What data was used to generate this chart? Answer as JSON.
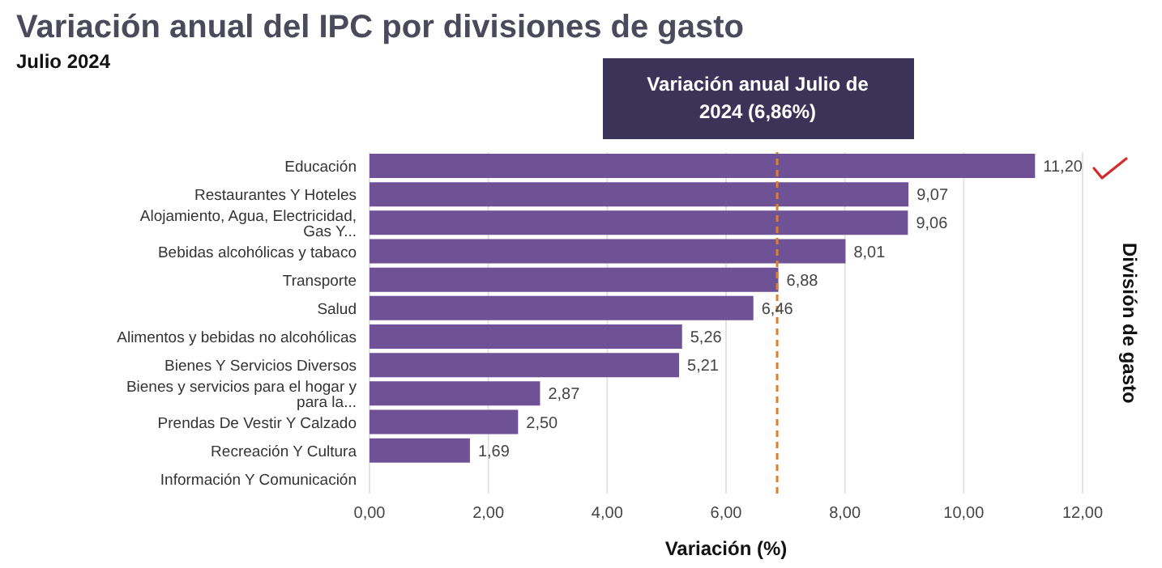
{
  "chart_data": {
    "type": "bar",
    "orientation": "horizontal",
    "title": "Variación anual del IPC por divisiones de gasto",
    "subtitle": "Julio 2024",
    "xlabel": "Variación (%)",
    "ylabel": "División de gasto",
    "categories": [
      "Educación",
      "Restaurantes Y Hoteles",
      "Alojamiento, Agua, Electricidad, Gas Y...",
      "Bebidas alcohólicas y tabaco",
      "Transporte",
      "Salud",
      "Alimentos y bebidas no alcohólicas",
      "Bienes Y Servicios Diversos",
      "Bienes y servicios para el hogar y para la...",
      "Prendas De Vestir Y Calzado",
      "Recreación Y Cultura",
      "Información Y Comunicación"
    ],
    "values": [
      11.2,
      9.07,
      9.06,
      8.01,
      6.88,
      6.46,
      5.26,
      5.21,
      2.87,
      2.5,
      1.69,
      null
    ],
    "value_labels": [
      "11,20",
      "9,07",
      "9,06",
      "8,01",
      "6,88",
      "6,46",
      "5,26",
      "5,21",
      "2,87",
      "2,50",
      "1,69",
      null
    ],
    "color": "#6f5196",
    "xlim": [
      0,
      12
    ],
    "xticks": [
      {
        "value": 0,
        "label": "0,00"
      },
      {
        "value": 2,
        "label": "2,00"
      },
      {
        "value": 4,
        "label": "4,00"
      },
      {
        "value": 6,
        "label": "6,00"
      },
      {
        "value": 8,
        "label": "8,00"
      },
      {
        "value": 10,
        "label": "10,00"
      },
      {
        "value": 12,
        "label": "12,00"
      }
    ],
    "grid": "x",
    "ref_lines": [
      {
        "axis": "x",
        "value": 6.86,
        "label": "Variación anual Julio de 2024 (6,86%)",
        "color": "#d9822b",
        "line_style": "dashed"
      }
    ]
  }
}
